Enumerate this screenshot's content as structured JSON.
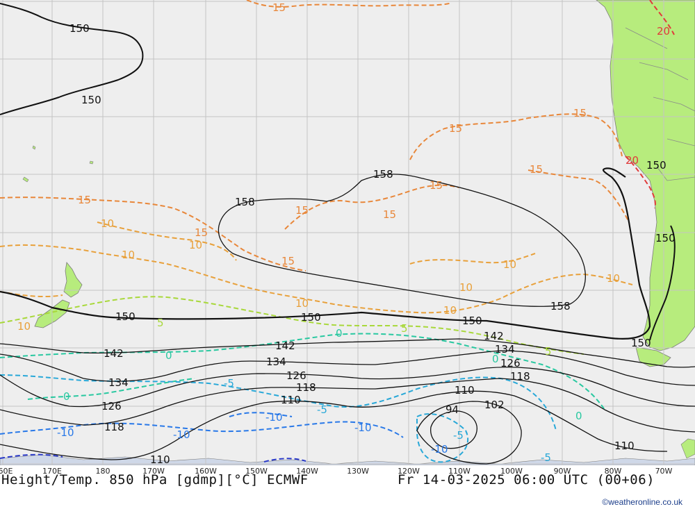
{
  "map": {
    "background_color": "#eeeeee",
    "land_color": "#b7ec7d",
    "grid_color": "#c4c4c4",
    "longitude_labels": [
      "60E",
      "170E",
      "180",
      "170W",
      "160W",
      "150W",
      "140W",
      "130W",
      "120W",
      "110W",
      "100W",
      "90W",
      "80W",
      "70W"
    ],
    "contour_labels": {
      "height": [
        "150",
        "150",
        "158",
        "158",
        "158",
        "150",
        "150",
        "150",
        "150",
        "150",
        "150",
        "142",
        "142",
        "142",
        "134",
        "134",
        "134",
        "126",
        "126",
        "126",
        "118",
        "118",
        "118",
        "110",
        "110",
        "110",
        "102",
        "94",
        "110"
      ],
      "temp": [
        "15",
        "15",
        "15",
        "15",
        "15",
        "15",
        "15",
        "15",
        "15",
        "15",
        "20",
        "20",
        "10",
        "10",
        "10",
        "10",
        "10",
        "10",
        "10",
        "10",
        "10",
        "5",
        "5",
        "5",
        "0",
        "0",
        "0",
        "0",
        "0",
        "-5",
        "-5",
        "-5",
        "-5",
        "-10",
        "-10",
        "-10",
        "-10",
        "-10"
      ]
    },
    "colors": {
      "height_contour": "#111111",
      "temp_20": "#e03a3a",
      "temp_15": "#e8873a",
      "temp_10": "#e8a03a",
      "temp_5": "#a8d83a",
      "temp_0": "#28c8a0",
      "temp_minus5": "#28a8d8",
      "temp_minus10": "#2878e8",
      "temp_minus15": "#2838c8"
    }
  },
  "caption": {
    "left": "Height/Temp. 850 hPa [gdmp][°C] ECMWF",
    "right": "Fr 14-03-2025 06:00 UTC (00+06)"
  },
  "credit": "©weatheronline.co.uk"
}
